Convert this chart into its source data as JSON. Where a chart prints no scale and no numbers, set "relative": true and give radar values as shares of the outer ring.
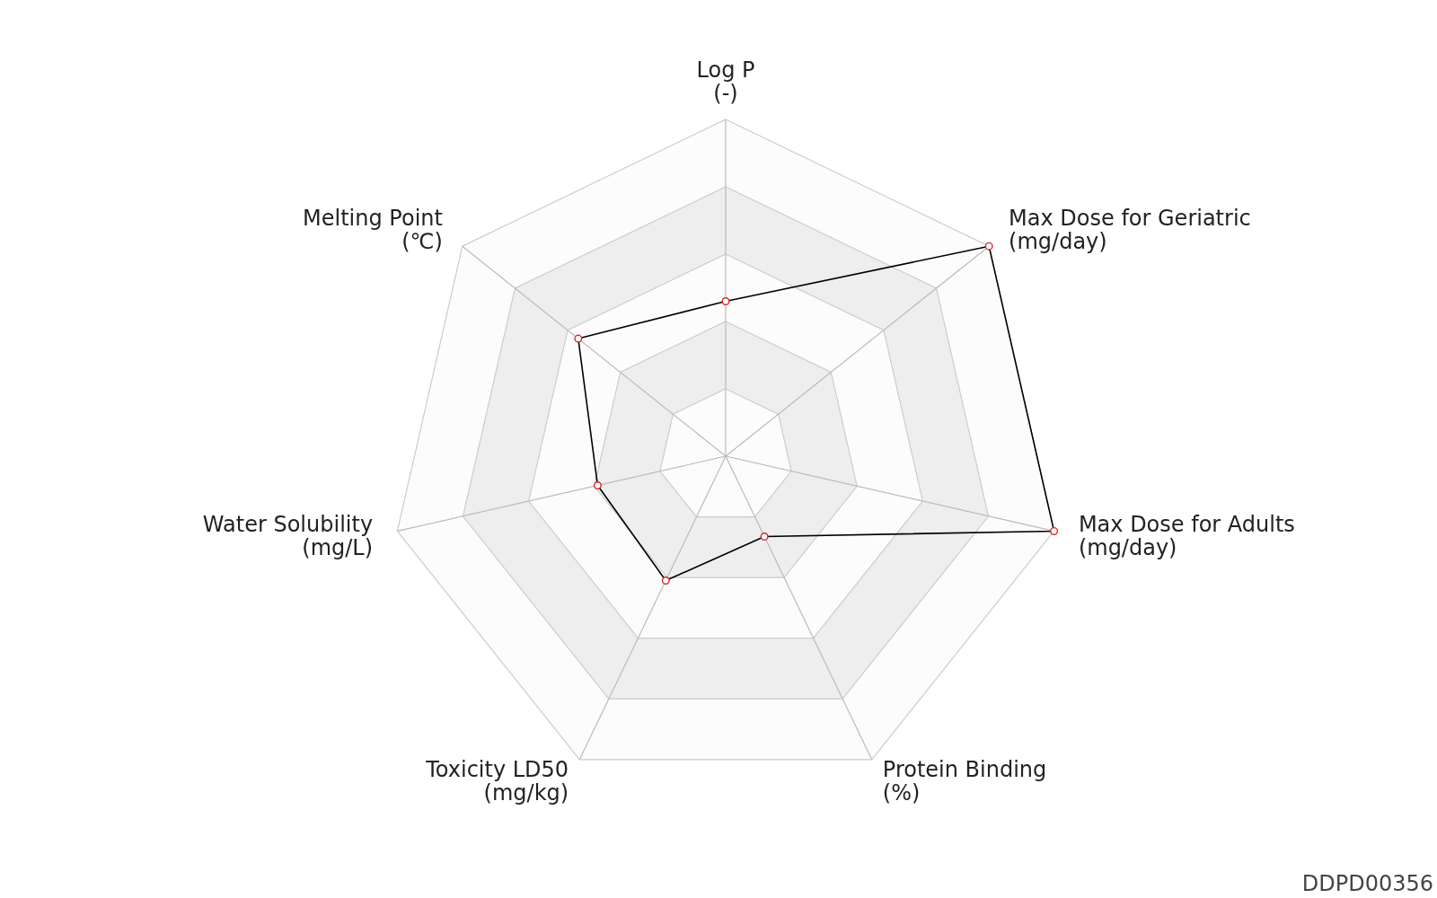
{
  "chart_data": {
    "type": "radar",
    "relative": true,
    "categories": [
      "Log P\n(-)",
      "Max Dose for Geriatric\n(mg/day)",
      "Max Dose for Adults\n(mg/day)",
      "Protein Binding\n(%)",
      "Toxicity LD50\n(mg/kg)",
      "Water Solubility\n(mg/L)",
      "Melting Point\n(℃)"
    ],
    "series": [
      {
        "color": "#000000",
        "values": [
          0.46,
          1.0,
          1.0,
          0.265,
          0.41,
          0.39,
          0.56
        ]
      }
    ],
    "marker": "circle",
    "annotations": [
      "DDPD00356"
    ]
  }
}
